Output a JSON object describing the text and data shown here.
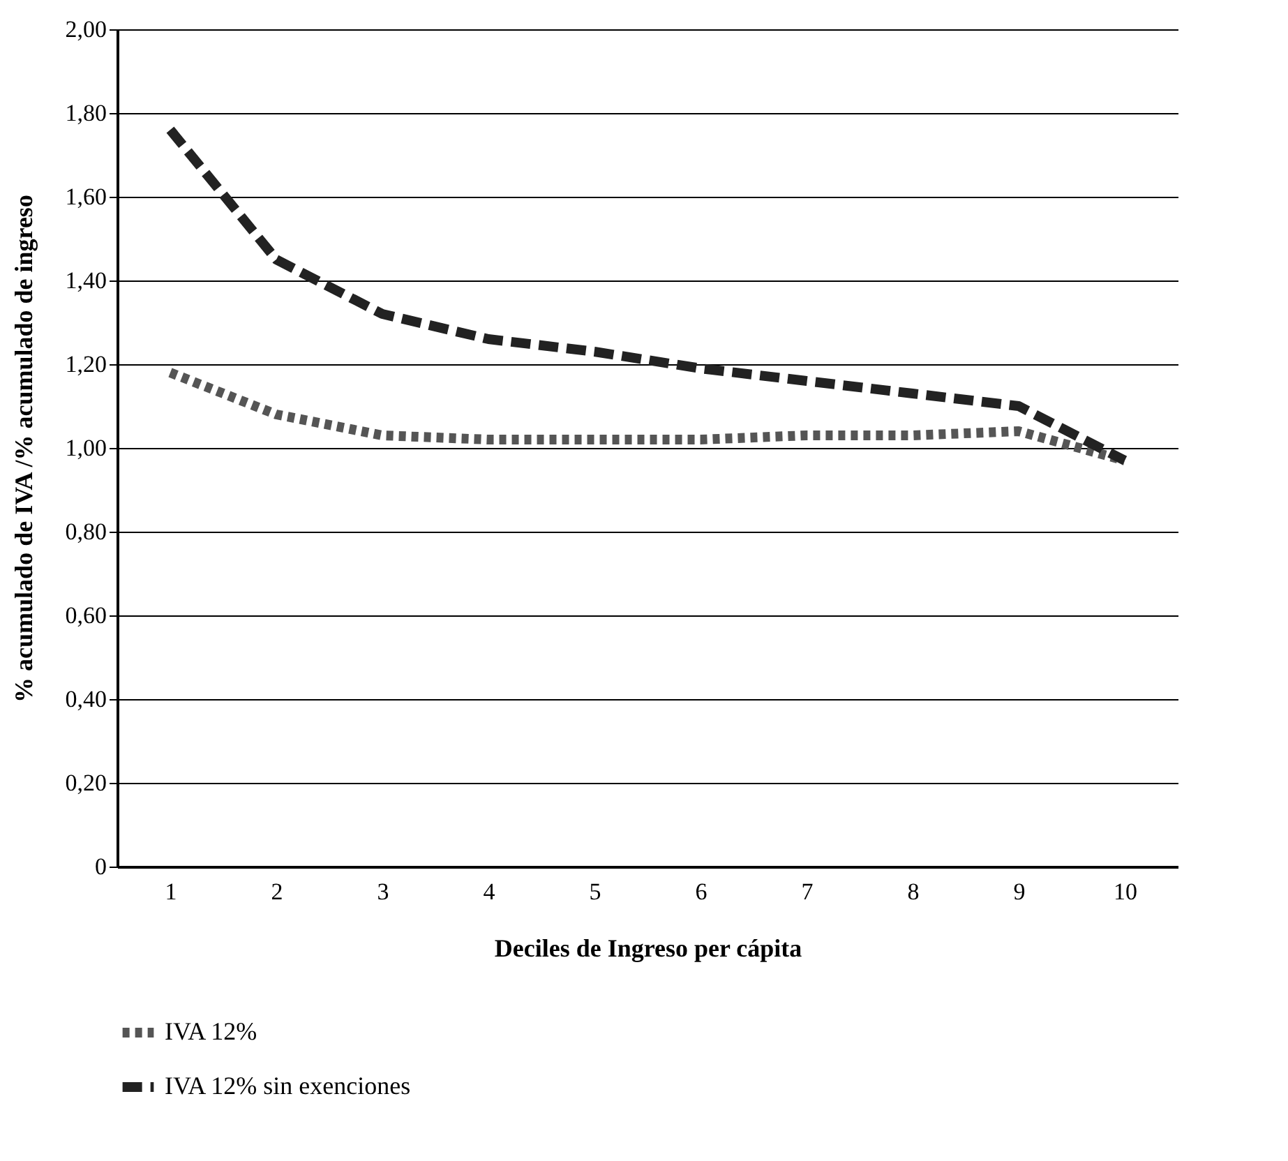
{
  "chart_data": {
    "type": "line",
    "xlabel": "Deciles de Ingreso per cápita",
    "ylabel": "% acumulado de IVA /% acumulado de ingreso",
    "categories": [
      "1",
      "2",
      "3",
      "4",
      "5",
      "6",
      "7",
      "8",
      "9",
      "10"
    ],
    "series": [
      {
        "name": "IVA 12%",
        "color": "#555555",
        "line_style": "dotted",
        "values": [
          1.18,
          1.08,
          1.03,
          1.02,
          1.02,
          1.02,
          1.03,
          1.03,
          1.04,
          0.97
        ]
      },
      {
        "name": "IVA 12% sin exenciones",
        "color": "#222222",
        "line_style": "dashed",
        "values": [
          1.76,
          1.45,
          1.32,
          1.26,
          1.23,
          1.19,
          1.16,
          1.13,
          1.1,
          0.97
        ]
      }
    ],
    "ylim": [
      0,
      2
    ],
    "yticks": [
      {
        "value": 0,
        "label": "0"
      },
      {
        "value": 0.2,
        "label": "0,20"
      },
      {
        "value": 0.4,
        "label": "0,40"
      },
      {
        "value": 0.6,
        "label": "0,60"
      },
      {
        "value": 0.8,
        "label": "0,80"
      },
      {
        "value": 1,
        "label": "1,00"
      },
      {
        "value": 1.2,
        "label": "1,20"
      },
      {
        "value": 1.4,
        "label": "1,40"
      },
      {
        "value": 1.6,
        "label": "1,60"
      },
      {
        "value": 1.8,
        "label": "1,80"
      },
      {
        "value": 2,
        "label": "2,00"
      }
    ],
    "grid": "y",
    "legend": "bottom",
    "marker": "none"
  }
}
